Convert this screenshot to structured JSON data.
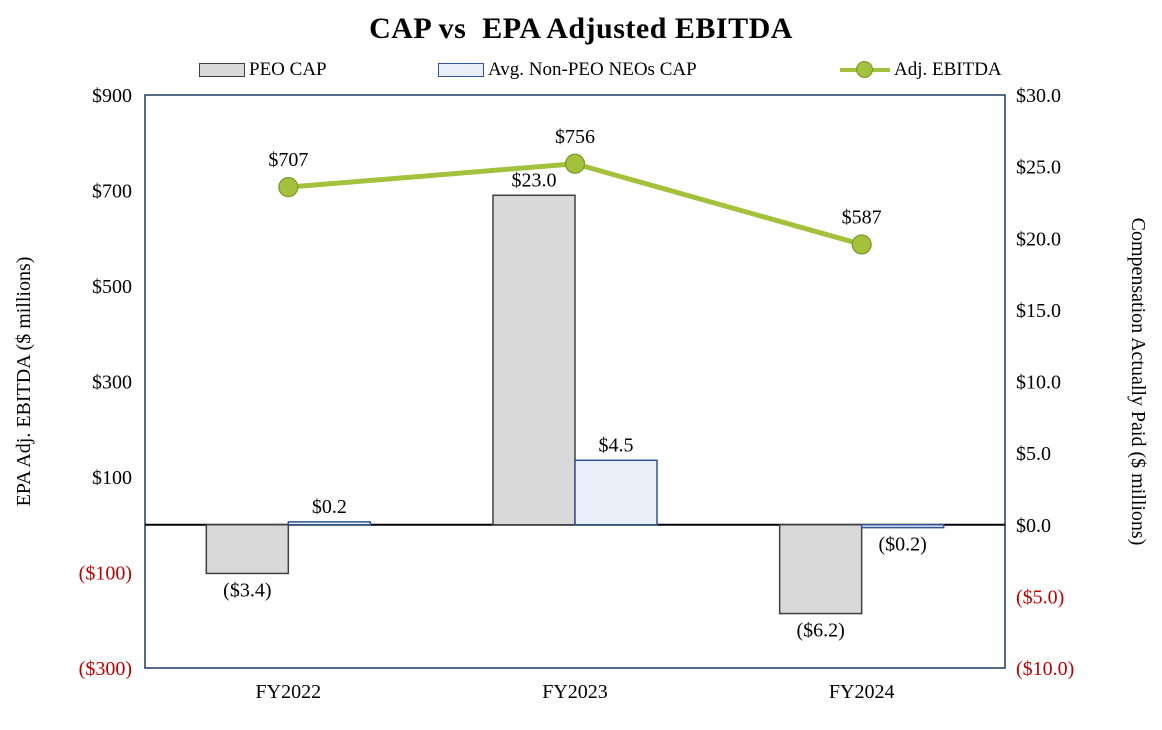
{
  "title": "CAP vs  EPA Adjusted EBITDA",
  "legend": [
    {
      "label": "PEO CAP",
      "type": "bar"
    },
    {
      "label": "Avg. Non-PEO NEOs CAP",
      "type": "bar"
    },
    {
      "label": "Adj. EBITDA",
      "type": "line"
    }
  ],
  "chart_data": {
    "type": "combo",
    "categories": [
      "FY2022",
      "FY2023",
      "FY2024"
    ],
    "series": [
      {
        "name": "PEO CAP",
        "chart_type": "bar",
        "axis": "right",
        "values": [
          -3.4,
          23.0,
          -6.2
        ],
        "labels": [
          "($3.4)",
          "$23.0",
          "($6.2)"
        ],
        "fill": "#d9d9d9",
        "stroke": "#404040"
      },
      {
        "name": "Avg. Non-PEO NEOs CAP",
        "chart_type": "bar",
        "axis": "right",
        "values": [
          0.2,
          4.5,
          -0.2
        ],
        "labels": [
          "$0.2",
          "$4.5",
          "($0.2)"
        ],
        "fill": "#e9eef8",
        "stroke": "#2f5597"
      },
      {
        "name": "Adj. EBITDA",
        "chart_type": "line",
        "axis": "left",
        "values": [
          707,
          756,
          587
        ],
        "labels": [
          "$707",
          "$756",
          "$587"
        ],
        "color": "#a3c13c",
        "marker_stroke": "#7e952c"
      }
    ],
    "left_axis": {
      "title": "EPA Adj. EBITDA ($ millions)",
      "min": -300,
      "max": 900,
      "ticks": [
        {
          "v": 900,
          "label": "$900"
        },
        {
          "v": 700,
          "label": "$700"
        },
        {
          "v": 500,
          "label": "$500"
        },
        {
          "v": 300,
          "label": "$300"
        },
        {
          "v": 100,
          "label": "$100"
        },
        {
          "v": -100,
          "label": "($100)"
        },
        {
          "v": -300,
          "label": "($300)"
        }
      ]
    },
    "right_axis": {
      "title": "Compensation Actually Paid ($ millions)",
      "min": -10,
      "max": 30,
      "ticks": [
        {
          "v": 30,
          "label": "$30.0"
        },
        {
          "v": 25,
          "label": "$25.0"
        },
        {
          "v": 20,
          "label": "$20.0"
        },
        {
          "v": 15,
          "label": "$15.0"
        },
        {
          "v": 10,
          "label": "$10.0"
        },
        {
          "v": 5,
          "label": "$5.0"
        },
        {
          "v": 0,
          "label": "$0.0"
        },
        {
          "v": -5,
          "label": "($5.0)"
        },
        {
          "v": -10,
          "label": "($10.0)"
        }
      ]
    },
    "negative_color": "#c00000",
    "plot_border_color": "#1f3864",
    "zero_line_color": "#000000"
  }
}
